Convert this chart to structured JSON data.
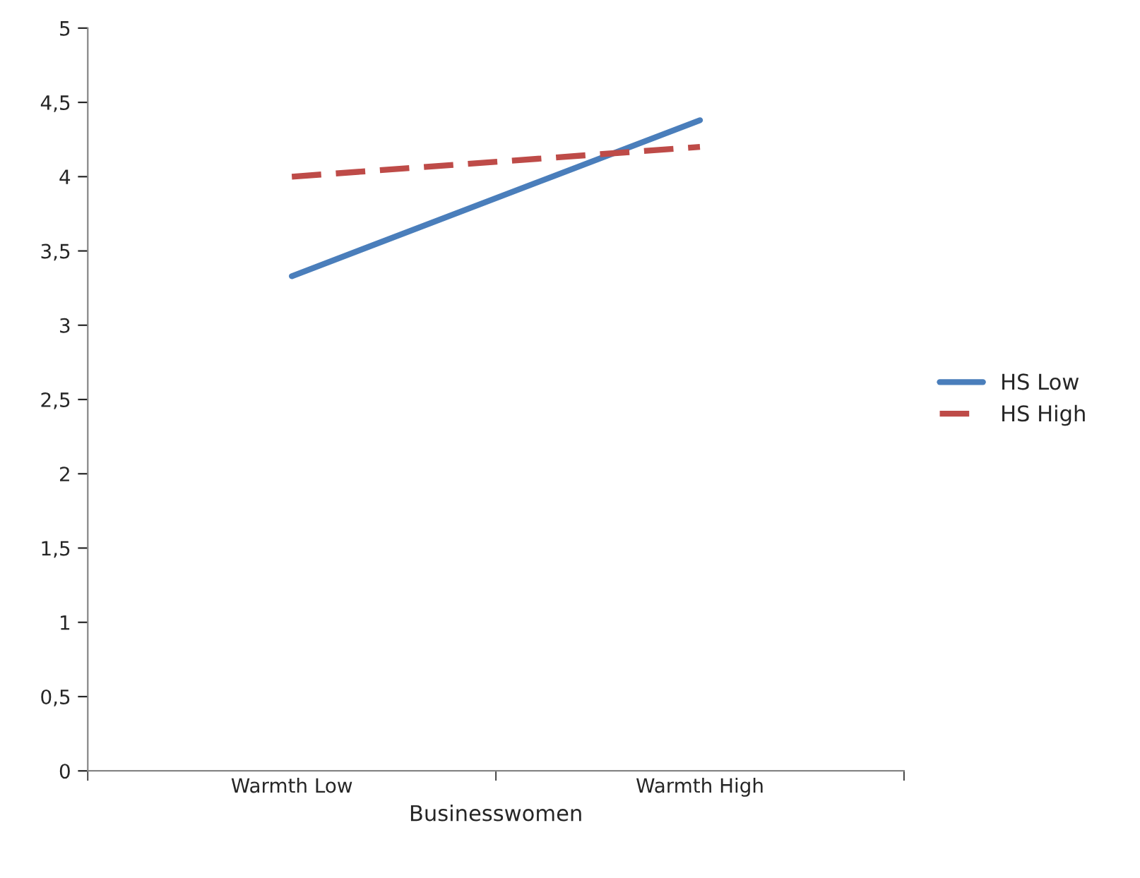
{
  "chart_data": {
    "type": "line",
    "xlabel": "Businesswomen",
    "categories": [
      "Warmth Low",
      "Warmth High"
    ],
    "series": [
      {
        "name": "HS Low",
        "color": "#4a7ebb",
        "values": [
          3.33,
          4.38
        ],
        "line_style": "solid"
      },
      {
        "name": "HS High",
        "color": "#be4b48",
        "values": [
          4.0,
          4.2
        ],
        "line_style": "dashed"
      }
    ],
    "ylim": [
      0,
      5
    ],
    "yticks": [
      0,
      {
        "value": 0.5,
        "label": "0,5"
      },
      1,
      {
        "value": 1.5,
        "label": "1,5"
      },
      2,
      {
        "value": 2.5,
        "label": "2,5"
      },
      3,
      {
        "value": 3.5,
        "label": "3,5"
      },
      4,
      {
        "value": 4.5,
        "label": "4,5"
      },
      5
    ],
    "grid": false,
    "legend": "right",
    "marker": "none"
  }
}
